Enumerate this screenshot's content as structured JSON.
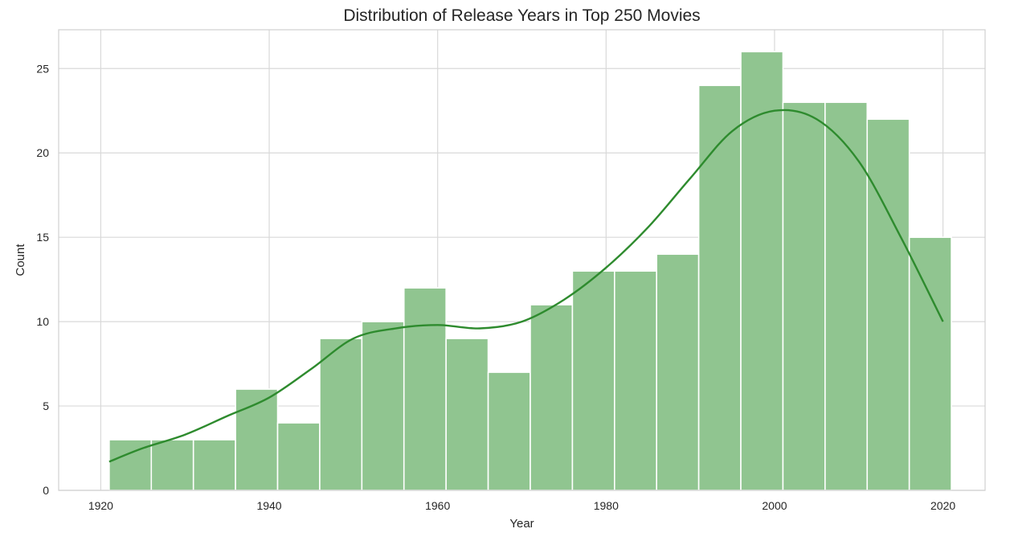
{
  "chart_data": {
    "type": "bar",
    "subtype": "histogram_with_kde",
    "title": "Distribution of Release Years in Top 250 Movies",
    "xlabel": "Year",
    "ylabel": "Count",
    "xlim": [
      1915,
      2025
    ],
    "ylim": [
      0,
      27.3
    ],
    "x_ticks": [
      1920,
      1940,
      1960,
      1980,
      2000,
      2020
    ],
    "y_ticks": [
      0,
      5,
      10,
      15,
      20,
      25
    ],
    "grid": true,
    "legend": "none",
    "bin_edges": [
      1921,
      1926,
      1931,
      1936,
      1941,
      1946,
      1951,
      1956,
      1961,
      1966,
      1971,
      1976,
      1981,
      1986,
      1991,
      1996,
      2001,
      2006,
      2011,
      2016,
      2021
    ],
    "values": [
      3,
      3,
      3,
      6,
      4,
      9,
      10,
      12,
      9,
      7,
      11,
      13,
      13,
      14,
      24,
      26,
      23,
      23,
      22,
      15
    ],
    "kde": {
      "x": [
        1921,
        1925,
        1930,
        1935,
        1940,
        1945,
        1950,
        1955,
        1960,
        1965,
        1970,
        1975,
        1980,
        1985,
        1990,
        1995,
        2000,
        2005,
        2010,
        2015,
        2020
      ],
      "y": [
        1.7,
        2.5,
        3.3,
        4.4,
        5.5,
        7.2,
        9.0,
        9.6,
        9.8,
        9.6,
        10.0,
        11.3,
        13.2,
        15.6,
        18.5,
        21.3,
        22.5,
        22.0,
        19.5,
        15.0,
        10.0
      ]
    },
    "colors": {
      "bar_fill": "#90c590",
      "bar_edge": "#ffffff",
      "kde_line": "#2e8b2e",
      "grid": "#d9d9d9",
      "frame": "#d0d0d0"
    }
  }
}
